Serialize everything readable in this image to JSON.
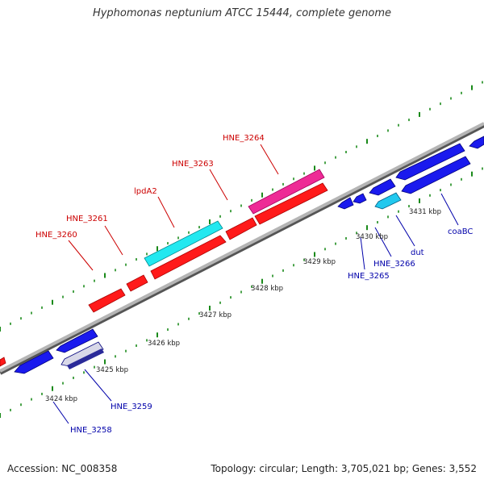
{
  "title": "Hyphomonas neptunium ATCC 15444, complete genome",
  "footer": {
    "accession": "Accession: NC_008358",
    "summary": "Topology: circular; Length: 3,705,021 bp; Genes: 3,552"
  },
  "colors": {
    "forward_gene": "#ff0000",
    "reverse_gene": "#1414e6",
    "highlight_cyan": "#22e0e8",
    "highlight_magenta": "#e8208a",
    "backbone": "#9a9a9a",
    "tick": "#1a8a1a",
    "forward_label": "#cc0000",
    "reverse_label": "#0000aa"
  },
  "scale_ticks": [
    "3424 kbp",
    "3425 kbp",
    "3426 kbp",
    "3427 kbp",
    "3428 kbp",
    "3429 kbp",
    "3430 kbp",
    "3431 kbp"
  ],
  "gene_labels_forward": [
    "HNE_3260",
    "HNE_3261",
    "lpdA2",
    "HNE_3263",
    "HNE_3264"
  ],
  "gene_labels_reverse": [
    "HNE_3258",
    "HNE_3259",
    "HNE_3265",
    "HNE_3266",
    "dut",
    "coaBC"
  ]
}
